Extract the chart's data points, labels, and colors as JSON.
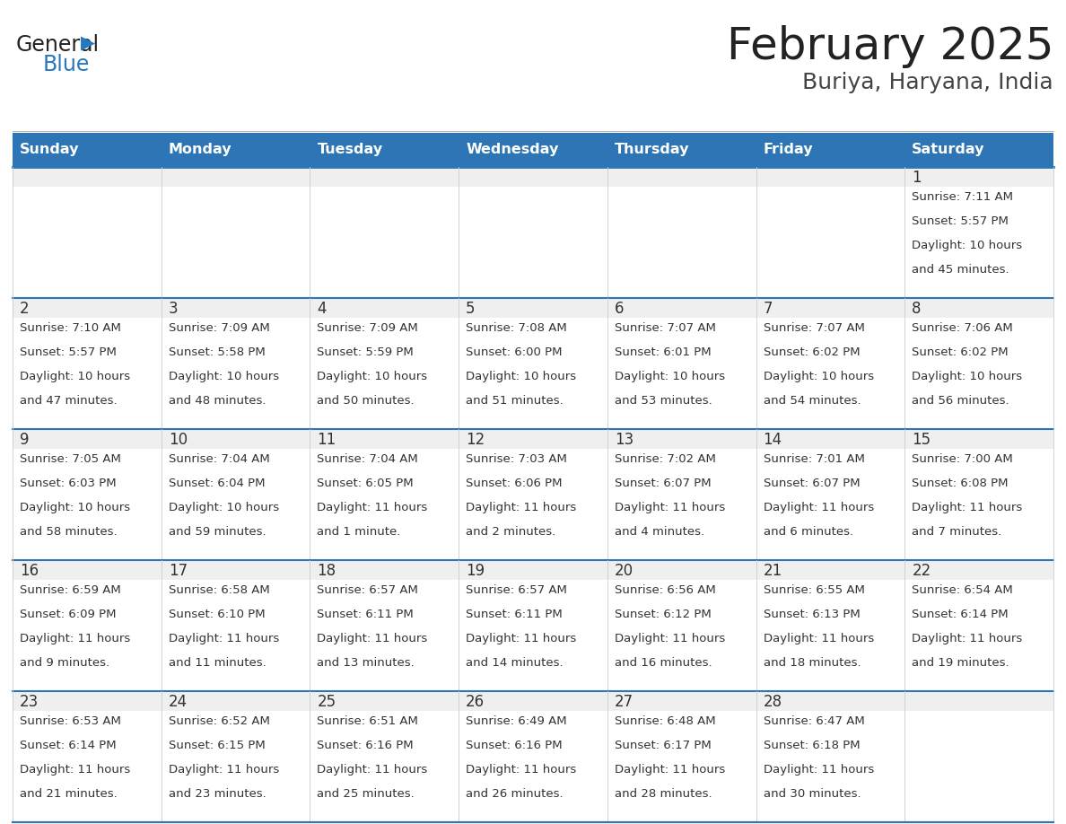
{
  "title": "February 2025",
  "subtitle": "Buriya, Haryana, India",
  "days_of_week": [
    "Sunday",
    "Monday",
    "Tuesday",
    "Wednesday",
    "Thursday",
    "Friday",
    "Saturday"
  ],
  "header_bg": "#2E75B6",
  "header_text": "#FFFFFF",
  "cell_bg_top": "#EFEFEF",
  "cell_bg_bottom": "#FFFFFF",
  "cell_border": "#2E75B6",
  "cell_border_inner": "#CCCCCC",
  "day_number_color": "#333333",
  "info_text_color": "#333333",
  "title_color": "#222222",
  "subtitle_color": "#444444",
  "logo_general_color": "#222222",
  "logo_blue_color": "#2779BD",
  "calendar": [
    [
      null,
      null,
      null,
      null,
      null,
      null,
      1
    ],
    [
      2,
      3,
      4,
      5,
      6,
      7,
      8
    ],
    [
      9,
      10,
      11,
      12,
      13,
      14,
      15
    ],
    [
      16,
      17,
      18,
      19,
      20,
      21,
      22
    ],
    [
      23,
      24,
      25,
      26,
      27,
      28,
      null
    ]
  ],
  "sunrise_data": {
    "1": "7:11 AM",
    "2": "7:10 AM",
    "3": "7:09 AM",
    "4": "7:09 AM",
    "5": "7:08 AM",
    "6": "7:07 AM",
    "7": "7:07 AM",
    "8": "7:06 AM",
    "9": "7:05 AM",
    "10": "7:04 AM",
    "11": "7:04 AM",
    "12": "7:03 AM",
    "13": "7:02 AM",
    "14": "7:01 AM",
    "15": "7:00 AM",
    "16": "6:59 AM",
    "17": "6:58 AM",
    "18": "6:57 AM",
    "19": "6:57 AM",
    "20": "6:56 AM",
    "21": "6:55 AM",
    "22": "6:54 AM",
    "23": "6:53 AM",
    "24": "6:52 AM",
    "25": "6:51 AM",
    "26": "6:49 AM",
    "27": "6:48 AM",
    "28": "6:47 AM"
  },
  "sunset_data": {
    "1": "5:57 PM",
    "2": "5:57 PM",
    "3": "5:58 PM",
    "4": "5:59 PM",
    "5": "6:00 PM",
    "6": "6:01 PM",
    "7": "6:02 PM",
    "8": "6:02 PM",
    "9": "6:03 PM",
    "10": "6:04 PM",
    "11": "6:05 PM",
    "12": "6:06 PM",
    "13": "6:07 PM",
    "14": "6:07 PM",
    "15": "6:08 PM",
    "16": "6:09 PM",
    "17": "6:10 PM",
    "18": "6:11 PM",
    "19": "6:11 PM",
    "20": "6:12 PM",
    "21": "6:13 PM",
    "22": "6:14 PM",
    "23": "6:14 PM",
    "24": "6:15 PM",
    "25": "6:16 PM",
    "26": "6:16 PM",
    "27": "6:17 PM",
    "28": "6:18 PM"
  },
  "daylight_data": {
    "1": [
      "10 hours",
      "and 45 minutes."
    ],
    "2": [
      "10 hours",
      "and 47 minutes."
    ],
    "3": [
      "10 hours",
      "and 48 minutes."
    ],
    "4": [
      "10 hours",
      "and 50 minutes."
    ],
    "5": [
      "10 hours",
      "and 51 minutes."
    ],
    "6": [
      "10 hours",
      "and 53 minutes."
    ],
    "7": [
      "10 hours",
      "and 54 minutes."
    ],
    "8": [
      "10 hours",
      "and 56 minutes."
    ],
    "9": [
      "10 hours",
      "and 58 minutes."
    ],
    "10": [
      "10 hours",
      "and 59 minutes."
    ],
    "11": [
      "11 hours",
      "and 1 minute."
    ],
    "12": [
      "11 hours",
      "and 2 minutes."
    ],
    "13": [
      "11 hours",
      "and 4 minutes."
    ],
    "14": [
      "11 hours",
      "and 6 minutes."
    ],
    "15": [
      "11 hours",
      "and 7 minutes."
    ],
    "16": [
      "11 hours",
      "and 9 minutes."
    ],
    "17": [
      "11 hours",
      "and 11 minutes."
    ],
    "18": [
      "11 hours",
      "and 13 minutes."
    ],
    "19": [
      "11 hours",
      "and 14 minutes."
    ],
    "20": [
      "11 hours",
      "and 16 minutes."
    ],
    "21": [
      "11 hours",
      "and 18 minutes."
    ],
    "22": [
      "11 hours",
      "and 19 minutes."
    ],
    "23": [
      "11 hours",
      "and 21 minutes."
    ],
    "24": [
      "11 hours",
      "and 23 minutes."
    ],
    "25": [
      "11 hours",
      "and 25 minutes."
    ],
    "26": [
      "11 hours",
      "and 26 minutes."
    ],
    "27": [
      "11 hours",
      "and 28 minutes."
    ],
    "28": [
      "11 hours",
      "and 30 minutes."
    ]
  }
}
